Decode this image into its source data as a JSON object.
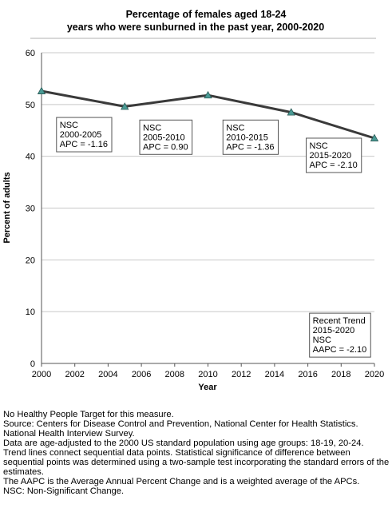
{
  "chart_data": {
    "type": "line",
    "title_line1": "Percentage of females aged 18-24",
    "title_line2": "years who were sunburned in the past year, 2000-2020",
    "xlabel": "Year",
    "ylabel": "Percent of adults",
    "xlim": [
      2000,
      2020
    ],
    "ylim": [
      0,
      60
    ],
    "x_ticks": [
      "2000",
      "2002",
      "2004",
      "2006",
      "2008",
      "2010",
      "2012",
      "2014",
      "2016",
      "2018",
      "2020"
    ],
    "y_ticks": [
      "0",
      "10",
      "20",
      "30",
      "40",
      "50",
      "60"
    ],
    "grid": "horizontal",
    "colors": {
      "line": "#3a3a3a",
      "marker": "#4a9a94",
      "grid": "#c8c8c8",
      "background": "#ffffff"
    },
    "series": [
      {
        "x": [
          2000,
          2005,
          2010,
          2015,
          2020
        ],
        "y": [
          52.6,
          49.6,
          51.8,
          48.5,
          43.5
        ]
      }
    ],
    "annotations": [
      {
        "lines": [
          "NSC",
          "2000-2005",
          "APC = -1.16"
        ],
        "x": 2000.9,
        "y": 47.5
      },
      {
        "lines": [
          "NSC",
          "2005-2010",
          "APC =  0.90"
        ],
        "x": 2005.9,
        "y": 47.0
      },
      {
        "lines": [
          "NSC",
          "2010-2015",
          "APC = -1.36"
        ],
        "x": 2010.9,
        "y": 47.0
      },
      {
        "lines": [
          "NSC",
          "2015-2020",
          "APC = -2.10"
        ],
        "x": 2015.9,
        "y": 43.5
      },
      {
        "lines": [
          "Recent Trend",
          "2015-2020",
          "NSC",
          "AAPC = -2.10"
        ],
        "x": 2016.1,
        "y": 9.7
      }
    ]
  },
  "footnotes": [
    "No Healthy People Target for this measure.",
    "Source: Centers for Disease Control and Prevention, National Center for Health Statistics. National Health Interview Survey.",
    "Data are age-adjusted to the 2000 US standard population using age groups: 18-19, 20-24.",
    "Trend lines connect sequential data points. Statistical significance of difference between sequential points was determined using a two-sample test incorporating the standard errors of the estimates.",
    "The AAPC is the Average Annual Percent Change and is a weighted average of the APCs.",
    "NSC: Non-Significant Change."
  ]
}
